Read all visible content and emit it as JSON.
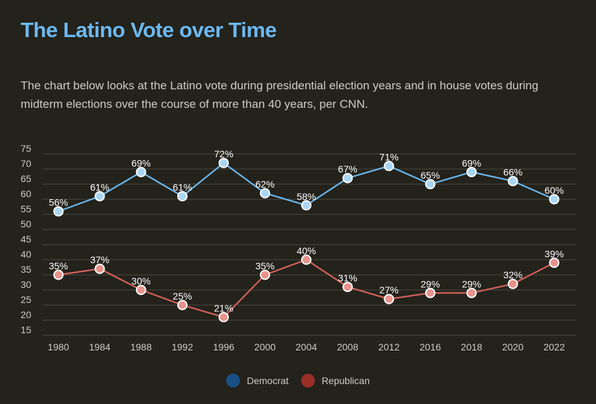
{
  "page": {
    "title": "The Latino Vote over Time",
    "description": "The chart below looks at the Latino vote during presidential election years and in house votes during midterm elections over the course of more than 40 years, per CNN."
  },
  "colors": {
    "background": "#23221b",
    "title": "#6cb8f0",
    "democrat_line": "#6cb8f0",
    "democrat_point": "#a9d6f5",
    "republican_line": "#d4625a",
    "republican_point": "#e8928a",
    "legend_democrat": "#1a4f86",
    "legend_republican": "#9a2f28",
    "grid": "#4a4a40"
  },
  "chart_data": {
    "type": "line",
    "categories": [
      "1980",
      "1984",
      "1988",
      "1992",
      "1996",
      "2000",
      "2004",
      "2008",
      "2012",
      "2016",
      "2018",
      "2020",
      "2022"
    ],
    "series": [
      {
        "name": "Democrat",
        "values": [
          56,
          61,
          69,
          61,
          72,
          62,
          58,
          67,
          71,
          65,
          69,
          66,
          60
        ],
        "labels": [
          "56%",
          "61%",
          "69%",
          "61%",
          "72%",
          "62%",
          "58%",
          "67%",
          "71%",
          "65%",
          "69%",
          "66%",
          "60%"
        ]
      },
      {
        "name": "Republican",
        "values": [
          35,
          37,
          30,
          25,
          21,
          35,
          40,
          31,
          27,
          29,
          29,
          32,
          39
        ],
        "labels": [
          "35%",
          "37%",
          "30%",
          "25%",
          "21%",
          "35%",
          "40%",
          "31%",
          "27%",
          "29%",
          "29%",
          "32%",
          "39%"
        ]
      }
    ],
    "y_ticks": [
      "15",
      "20",
      "25",
      "30",
      "35",
      "40",
      "45",
      "50",
      "55",
      "60",
      "65",
      "70",
      "75"
    ],
    "ylim": [
      15,
      75
    ],
    "grid": true,
    "legend_position": "bottom-center",
    "title": "",
    "xlabel": "",
    "ylabel": ""
  }
}
